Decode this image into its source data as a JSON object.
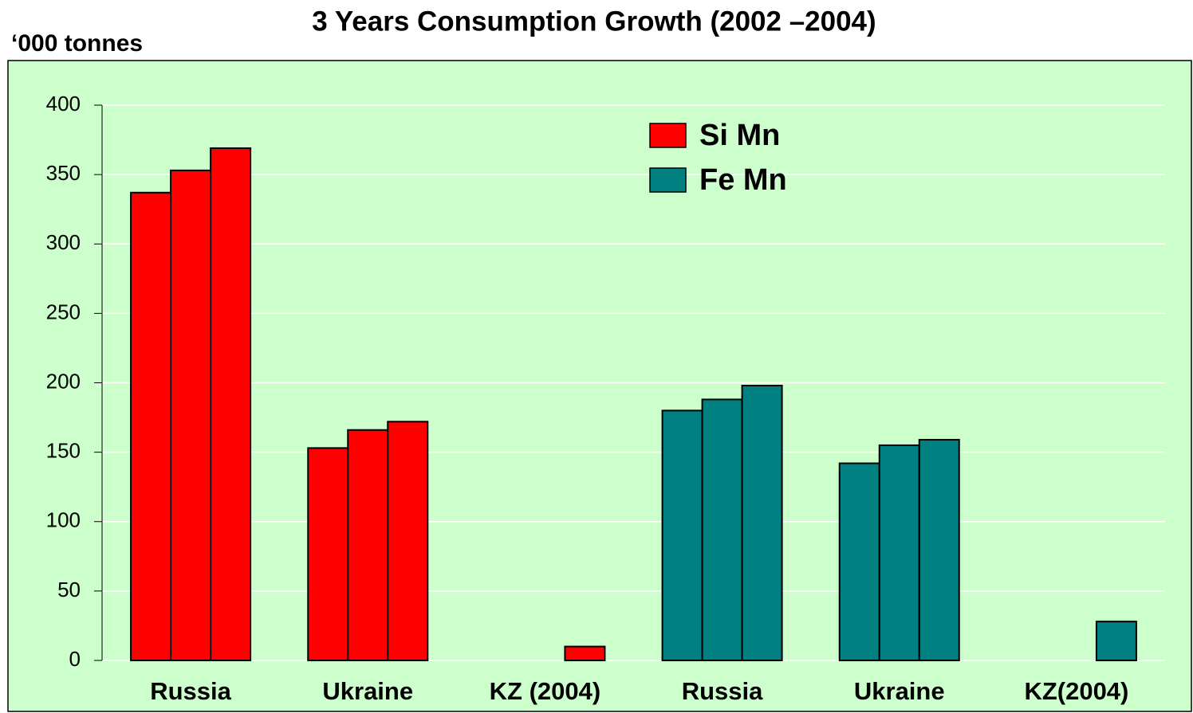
{
  "chart_data": {
    "type": "grouped-bar",
    "title": "3 Years Consumption Growth (2002 –2004)",
    "y_label": "‘000 tonnes",
    "ylim": [
      0,
      400
    ],
    "yticks": [
      0,
      50,
      100,
      150,
      200,
      250,
      300,
      350,
      400
    ],
    "grid": true,
    "legend": "top-center",
    "background": "#ccffcc",
    "series": [
      {
        "name": "Si Mn",
        "color": "#ff0000",
        "categories": [
          "Russia",
          "Ukraine",
          "KZ (2004)"
        ],
        "values": [
          [
            337,
            353,
            369
          ],
          [
            153,
            166,
            172
          ],
          [
            null,
            null,
            10
          ]
        ]
      },
      {
        "name": "Fe Mn",
        "color": "#008080",
        "categories": [
          "Russia",
          "Ukraine",
          "KZ(2004)"
        ],
        "values": [
          [
            180,
            188,
            198
          ],
          [
            142,
            155,
            159
          ],
          [
            null,
            null,
            28
          ]
        ]
      }
    ]
  }
}
